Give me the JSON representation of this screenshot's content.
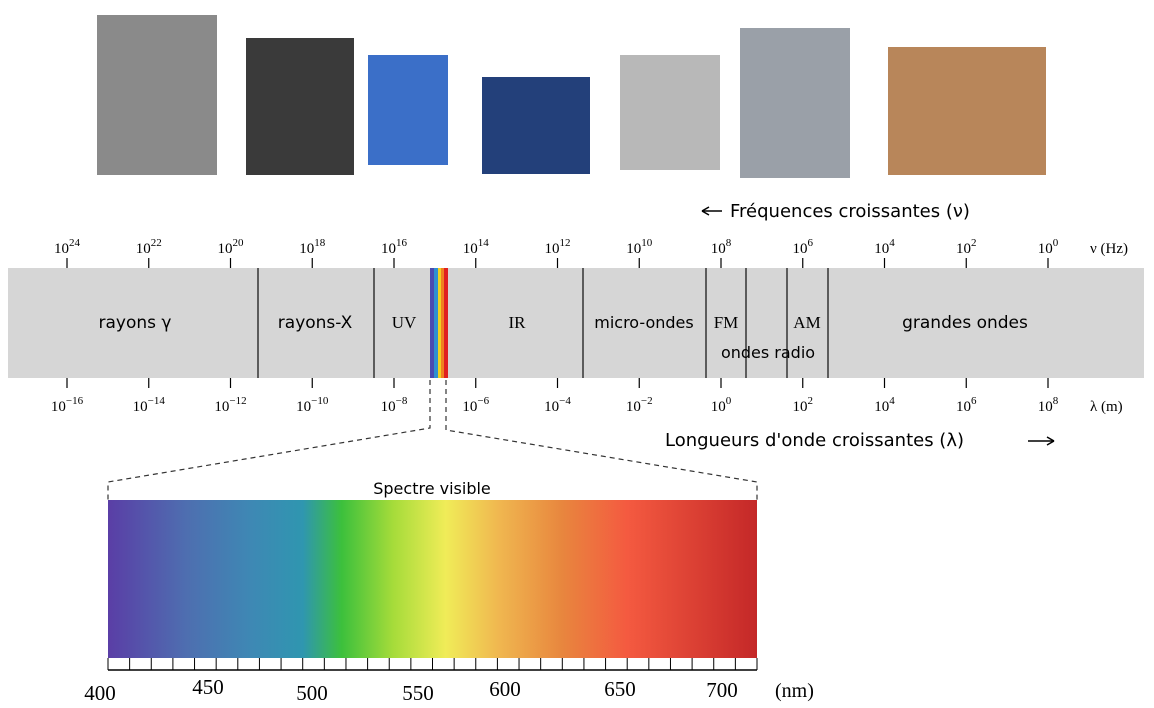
{
  "frequency_axis": {
    "title": "Fréquences croissantes (ν)",
    "unit": "ν (Hz)",
    "ticks": [
      {
        "base": "10",
        "exp": "24"
      },
      {
        "base": "10",
        "exp": "22"
      },
      {
        "base": "10",
        "exp": "20"
      },
      {
        "base": "10",
        "exp": "18"
      },
      {
        "base": "10",
        "exp": "16"
      },
      {
        "base": "10",
        "exp": "14"
      },
      {
        "base": "10",
        "exp": "12"
      },
      {
        "base": "10",
        "exp": "10"
      },
      {
        "base": "10",
        "exp": "8"
      },
      {
        "base": "10",
        "exp": "6"
      },
      {
        "base": "10",
        "exp": "4"
      },
      {
        "base": "10",
        "exp": "2"
      },
      {
        "base": "10",
        "exp": "0"
      }
    ]
  },
  "bands": [
    "rayons γ",
    "rayons-X",
    "UV",
    "IR",
    "micro-ondes",
    "FM",
    "ondes radio",
    "AM",
    "grandes ondes"
  ],
  "wavelength_axis": {
    "title": "Longueurs d'onde croissantes (λ)",
    "unit": "λ (m)",
    "ticks": [
      {
        "base": "10",
        "exp": "−16"
      },
      {
        "base": "10",
        "exp": "−14"
      },
      {
        "base": "10",
        "exp": "−12"
      },
      {
        "base": "10",
        "exp": "−10"
      },
      {
        "base": "10",
        "exp": "−8"
      },
      {
        "base": "10",
        "exp": "−6"
      },
      {
        "base": "10",
        "exp": "−4"
      },
      {
        "base": "10",
        "exp": "−2"
      },
      {
        "base": "10",
        "exp": "0"
      },
      {
        "base": "10",
        "exp": "2"
      },
      {
        "base": "10",
        "exp": "4"
      },
      {
        "base": "10",
        "exp": "6"
      },
      {
        "base": "10",
        "exp": "8"
      }
    ]
  },
  "visible": {
    "title": "Spectre visible",
    "ticks": [
      "400",
      "450",
      "500",
      "550",
      "600",
      "650",
      "700"
    ],
    "unit": "(nm)"
  }
}
